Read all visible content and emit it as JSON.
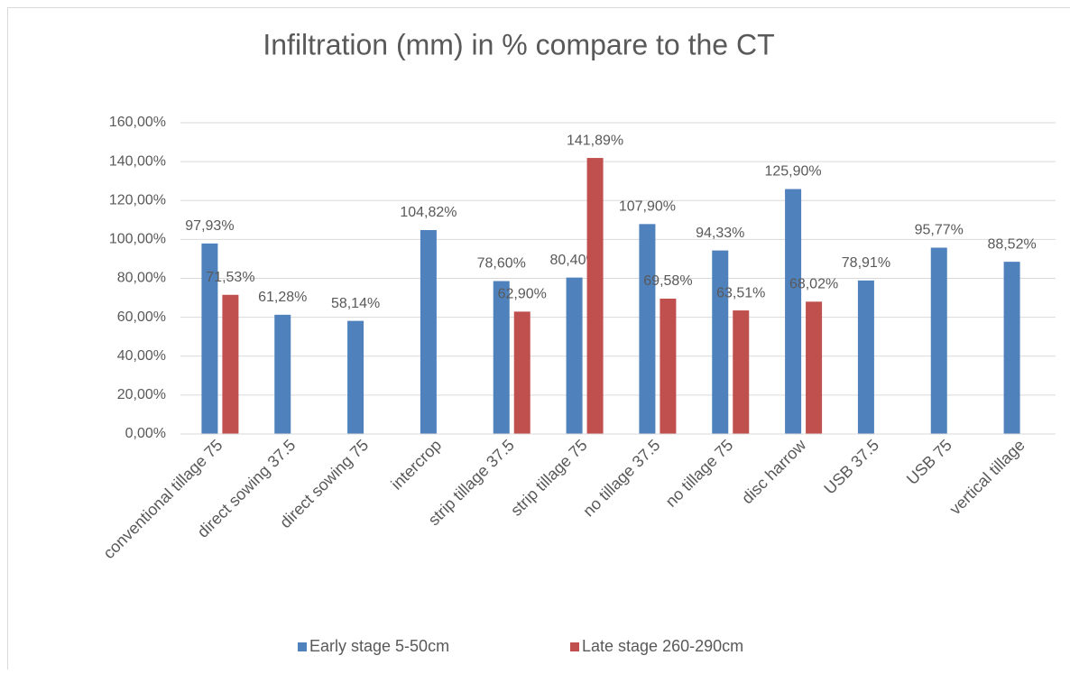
{
  "chart_data": {
    "type": "bar",
    "title": "Infiltration (mm) in % compare to the CT",
    "categories": [
      "conventional tillage 75",
      "direct sowing 37.5",
      "direct sowing 75",
      "intercrop",
      "strip tillage 37.5",
      "strip tillage 75",
      "no tillage 37.5",
      "no tillage 75",
      "disc harrow",
      "USB 37.5",
      "USB 75",
      "vertical tillage"
    ],
    "series": [
      {
        "name": "Early stage 5-50cm",
        "color": "#4f81bd",
        "values": [
          97.93,
          61.28,
          58.14,
          104.82,
          78.6,
          80.4,
          107.9,
          94.33,
          125.9,
          78.91,
          95.77,
          88.52
        ],
        "value_labels": [
          "97,93%",
          "61,28%",
          "58,14%",
          "104,82%",
          "78,60%",
          "80,40%",
          "107,90%",
          "94,33%",
          "125,90%",
          "78,91%",
          "95,77%",
          "88,52%"
        ]
      },
      {
        "name": "Late stage 260-290cm",
        "color": "#c0504d",
        "values": [
          71.53,
          null,
          null,
          null,
          62.9,
          141.89,
          69.58,
          63.51,
          68.02,
          null,
          null,
          null
        ],
        "value_labels": [
          "71,53%",
          null,
          null,
          null,
          "62,90%",
          "141,89%",
          "69,58%",
          "63,51%",
          "68,02%",
          null,
          null,
          null
        ]
      }
    ],
    "ylim": [
      0,
      160
    ],
    "yticks": [
      {
        "value": 0,
        "label": "0,00%"
      },
      {
        "value": 20,
        "label": "20,00%"
      },
      {
        "value": 40,
        "label": "40,00%"
      },
      {
        "value": 60,
        "label": "60,00%"
      },
      {
        "value": 80,
        "label": "80,00%"
      },
      {
        "value": 100,
        "label": "100,00%"
      },
      {
        "value": 120,
        "label": "120,00%"
      },
      {
        "value": 140,
        "label": "140,00%"
      },
      {
        "value": 160,
        "label": "160,00%"
      }
    ],
    "grid": true,
    "legend": "bottom"
  }
}
